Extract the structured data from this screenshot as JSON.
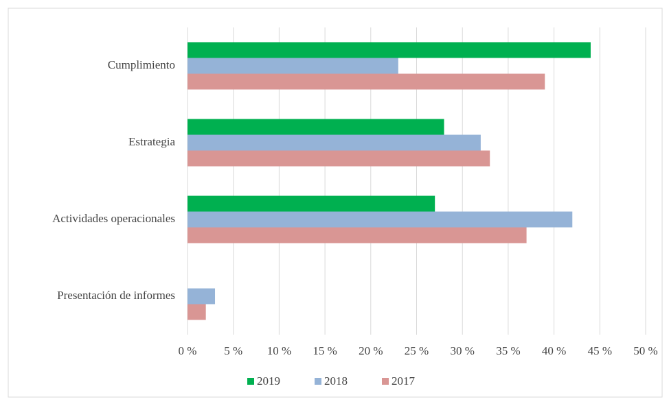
{
  "chart_data": {
    "type": "bar",
    "orientation": "horizontal",
    "categories": [
      "Cumplimiento",
      "Estrategia",
      "Actividades operacionales",
      "Presentación de informes"
    ],
    "series": [
      {
        "name": "2019",
        "color": "#00b050",
        "values": [
          44,
          28,
          27,
          0
        ]
      },
      {
        "name": "2018",
        "color": "#95b3d7",
        "values": [
          23,
          32,
          42,
          3
        ]
      },
      {
        "name": "2017",
        "color": "#d99694",
        "values": [
          39,
          33,
          37,
          2
        ]
      }
    ],
    "xlim": [
      0,
      50
    ],
    "xticks": [
      {
        "value": 0,
        "label": "0 %"
      },
      {
        "value": 5,
        "label": "5 %"
      },
      {
        "value": 10,
        "label": "10 %"
      },
      {
        "value": 15,
        "label": "15 %"
      },
      {
        "value": 20,
        "label": "20 %"
      },
      {
        "value": 25,
        "label": "25 %"
      },
      {
        "value": 30,
        "label": "30 %"
      },
      {
        "value": 35,
        "label": "35 %"
      },
      {
        "value": 40,
        "label": "40 %"
      },
      {
        "value": 45,
        "label": "45 %"
      },
      {
        "value": 50,
        "label": "50 %"
      }
    ],
    "grid": true,
    "legend": "bottom"
  }
}
